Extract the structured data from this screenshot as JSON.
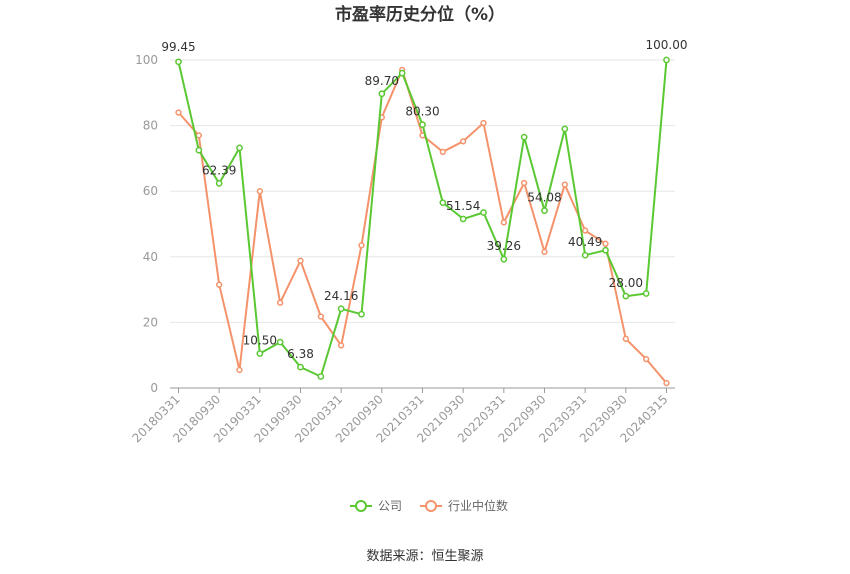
{
  "chart_data": {
    "type": "line",
    "title": "市盈率历史分位（%）",
    "source": "数据来源：恒生聚源",
    "categories": [
      "20180331",
      "20180630",
      "20180930",
      "20181231",
      "20190331",
      "20190630",
      "20190930",
      "20191231",
      "20200331",
      "20200630",
      "20200930",
      "20201231",
      "20210331",
      "20210630",
      "20210930",
      "20211231",
      "20220331",
      "20220630",
      "20220930",
      "20221231",
      "20230331",
      "20230630",
      "20230930",
      "20231231",
      "20240315"
    ],
    "xtick_labels": [
      "20180331",
      "20180930",
      "20190331",
      "20190930",
      "20200331",
      "20200930",
      "20210331",
      "20210930",
      "20220331",
      "20220930",
      "20230331",
      "20230930",
      "20240315"
    ],
    "ylim": [
      0,
      100
    ],
    "yticks": [
      0,
      20,
      40,
      60,
      80,
      100
    ],
    "grid": true,
    "legend_position": "bottom",
    "series": [
      {
        "name": "公司",
        "color": "#5ac832",
        "values": [
          99.45,
          72.5,
          62.39,
          73.2,
          10.5,
          14.0,
          6.38,
          3.5,
          24.16,
          22.5,
          89.7,
          96.0,
          80.3,
          56.5,
          51.54,
          53.5,
          39.26,
          76.5,
          54.08,
          79.0,
          40.49,
          42.0,
          28.0,
          28.8,
          100.0
        ],
        "labels": [
          "99.45",
          null,
          "62.39",
          null,
          "10.50",
          null,
          "6.38",
          null,
          "24.16",
          null,
          "89.70",
          null,
          "80.30",
          null,
          "51.54",
          null,
          "39.26",
          null,
          "54.08",
          null,
          "40.49",
          null,
          "28.00",
          null,
          "100.00"
        ]
      },
      {
        "name": "行业中位数",
        "color": "#f4936b",
        "values": [
          84.0,
          77.0,
          31.5,
          5.5,
          60.0,
          26.0,
          38.8,
          21.8,
          13.0,
          43.5,
          82.5,
          97.0,
          77.0,
          72.0,
          75.2,
          80.8,
          50.5,
          62.5,
          41.5,
          62.0,
          48.0,
          44.0,
          15.0,
          8.8,
          1.5
        ]
      }
    ]
  }
}
